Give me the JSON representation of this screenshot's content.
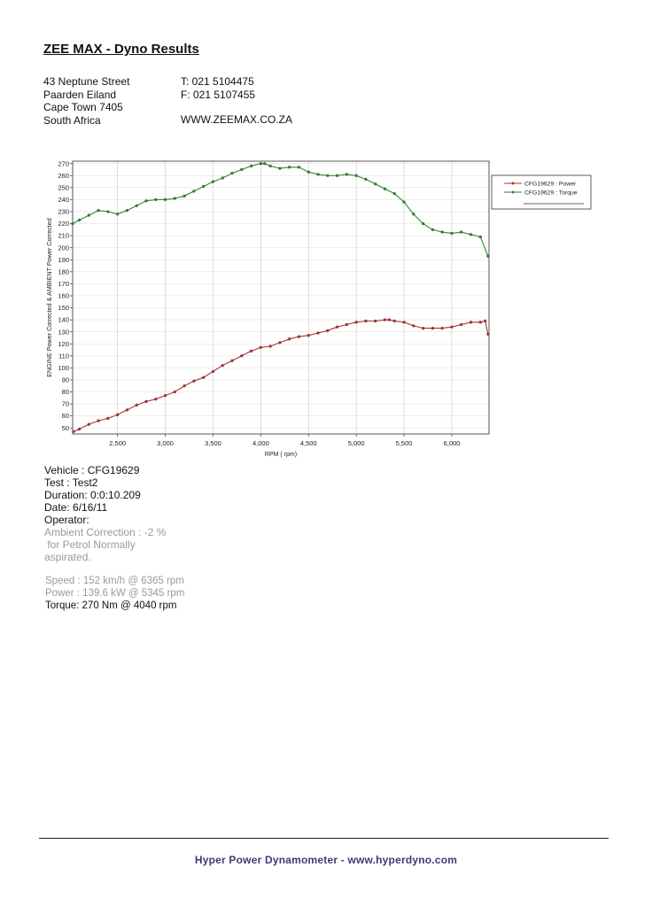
{
  "document": {
    "title": "ZEE MAX - Dyno Results",
    "address": [
      "43 Neptune Street",
      "Paarden Eiland",
      "Cape Town 7405",
      "South Africa"
    ],
    "phone": "T: 021 5104475",
    "fax": "F: 021 5107455",
    "website": "WWW.ZEEMAX.CO.ZA",
    "info": {
      "vehicle": "Vehicle : CFG19629",
      "test": "Test   : Test2",
      "duration": "Duration: 0:0:10.209",
      "date": "Date:  6/16/11",
      "operator": "Operator:",
      "ambient_1": "Ambient Correction : -2 %",
      "ambient_2": " for Petrol Normally",
      "ambient_3": "aspirated."
    },
    "stats": {
      "speed": "Speed : 152 km/h @ 6365 rpm",
      "power": "Power : 139.6 kW @ 5345 rpm",
      "torque": "Torque: 270 Nm @ 4040 rpm"
    },
    "footer": "Hyper Power Dynamometer  -  www.hyperdyno.com"
  },
  "chart_data": {
    "type": "line",
    "xlabel": "RPM ( rpm)",
    "ylabel": "ENGINE Power Corrected & AMBIENT Power Corrected",
    "xlim": [
      2030,
      6390
    ],
    "ylim": [
      45,
      272
    ],
    "x_ticks": [
      2500,
      3000,
      3500,
      4000,
      4500,
      5000,
      5500,
      6000
    ],
    "x_tick_labels": [
      "2,500",
      "3,000",
      "3,500",
      "4,000",
      "4,500",
      "5,000",
      "5,500",
      "6,000"
    ],
    "y_ticks": [
      50,
      60,
      70,
      80,
      90,
      100,
      110,
      120,
      130,
      140,
      150,
      160,
      170,
      180,
      190,
      200,
      210,
      220,
      230,
      240,
      250,
      260,
      270
    ],
    "grid": true,
    "legend_position": "right",
    "series": [
      {
        "name": "CFG19629 : Power",
        "color": "#b03030",
        "x": [
          2040,
          2100,
          2200,
          2300,
          2400,
          2500,
          2600,
          2700,
          2800,
          2900,
          3000,
          3100,
          3200,
          3300,
          3400,
          3500,
          3600,
          3700,
          3800,
          3900,
          4000,
          4100,
          4200,
          4300,
          4400,
          4500,
          4600,
          4700,
          4800,
          4900,
          5000,
          5100,
          5200,
          5300,
          5345,
          5400,
          5500,
          5600,
          5700,
          5800,
          5900,
          6000,
          6100,
          6200,
          6300,
          6350,
          6380
        ],
        "y": [
          47,
          49,
          53,
          56,
          58,
          61,
          65,
          69,
          72,
          74,
          77,
          80,
          85,
          89,
          92,
          97,
          102,
          106,
          110,
          114,
          117,
          118,
          121,
          124,
          126,
          127,
          129,
          131,
          134,
          136,
          138,
          139,
          139,
          140,
          140,
          139,
          138,
          135,
          133,
          133,
          133,
          134,
          136,
          138,
          138,
          139,
          128
        ]
      },
      {
        "name": "CFG19629 : Torque",
        "color": "#2e8b2e",
        "x": [
          2030,
          2100,
          2200,
          2300,
          2400,
          2500,
          2600,
          2700,
          2800,
          2900,
          3000,
          3100,
          3200,
          3300,
          3400,
          3500,
          3600,
          3700,
          3800,
          3900,
          4000,
          4040,
          4100,
          4200,
          4300,
          4400,
          4500,
          4600,
          4700,
          4800,
          4900,
          5000,
          5100,
          5200,
          5300,
          5400,
          5500,
          5600,
          5700,
          5800,
          5900,
          6000,
          6100,
          6200,
          6300,
          6380
        ],
        "y": [
          220,
          223,
          227,
          231,
          230,
          228,
          231,
          235,
          239,
          240,
          240,
          241,
          243,
          247,
          251,
          255,
          258,
          262,
          265,
          268,
          270,
          270,
          268,
          266,
          267,
          267,
          263,
          261,
          260,
          260,
          261,
          260,
          257,
          253,
          249,
          245,
          238,
          228,
          220,
          215,
          213,
          212,
          213,
          211,
          209,
          193
        ]
      }
    ]
  }
}
